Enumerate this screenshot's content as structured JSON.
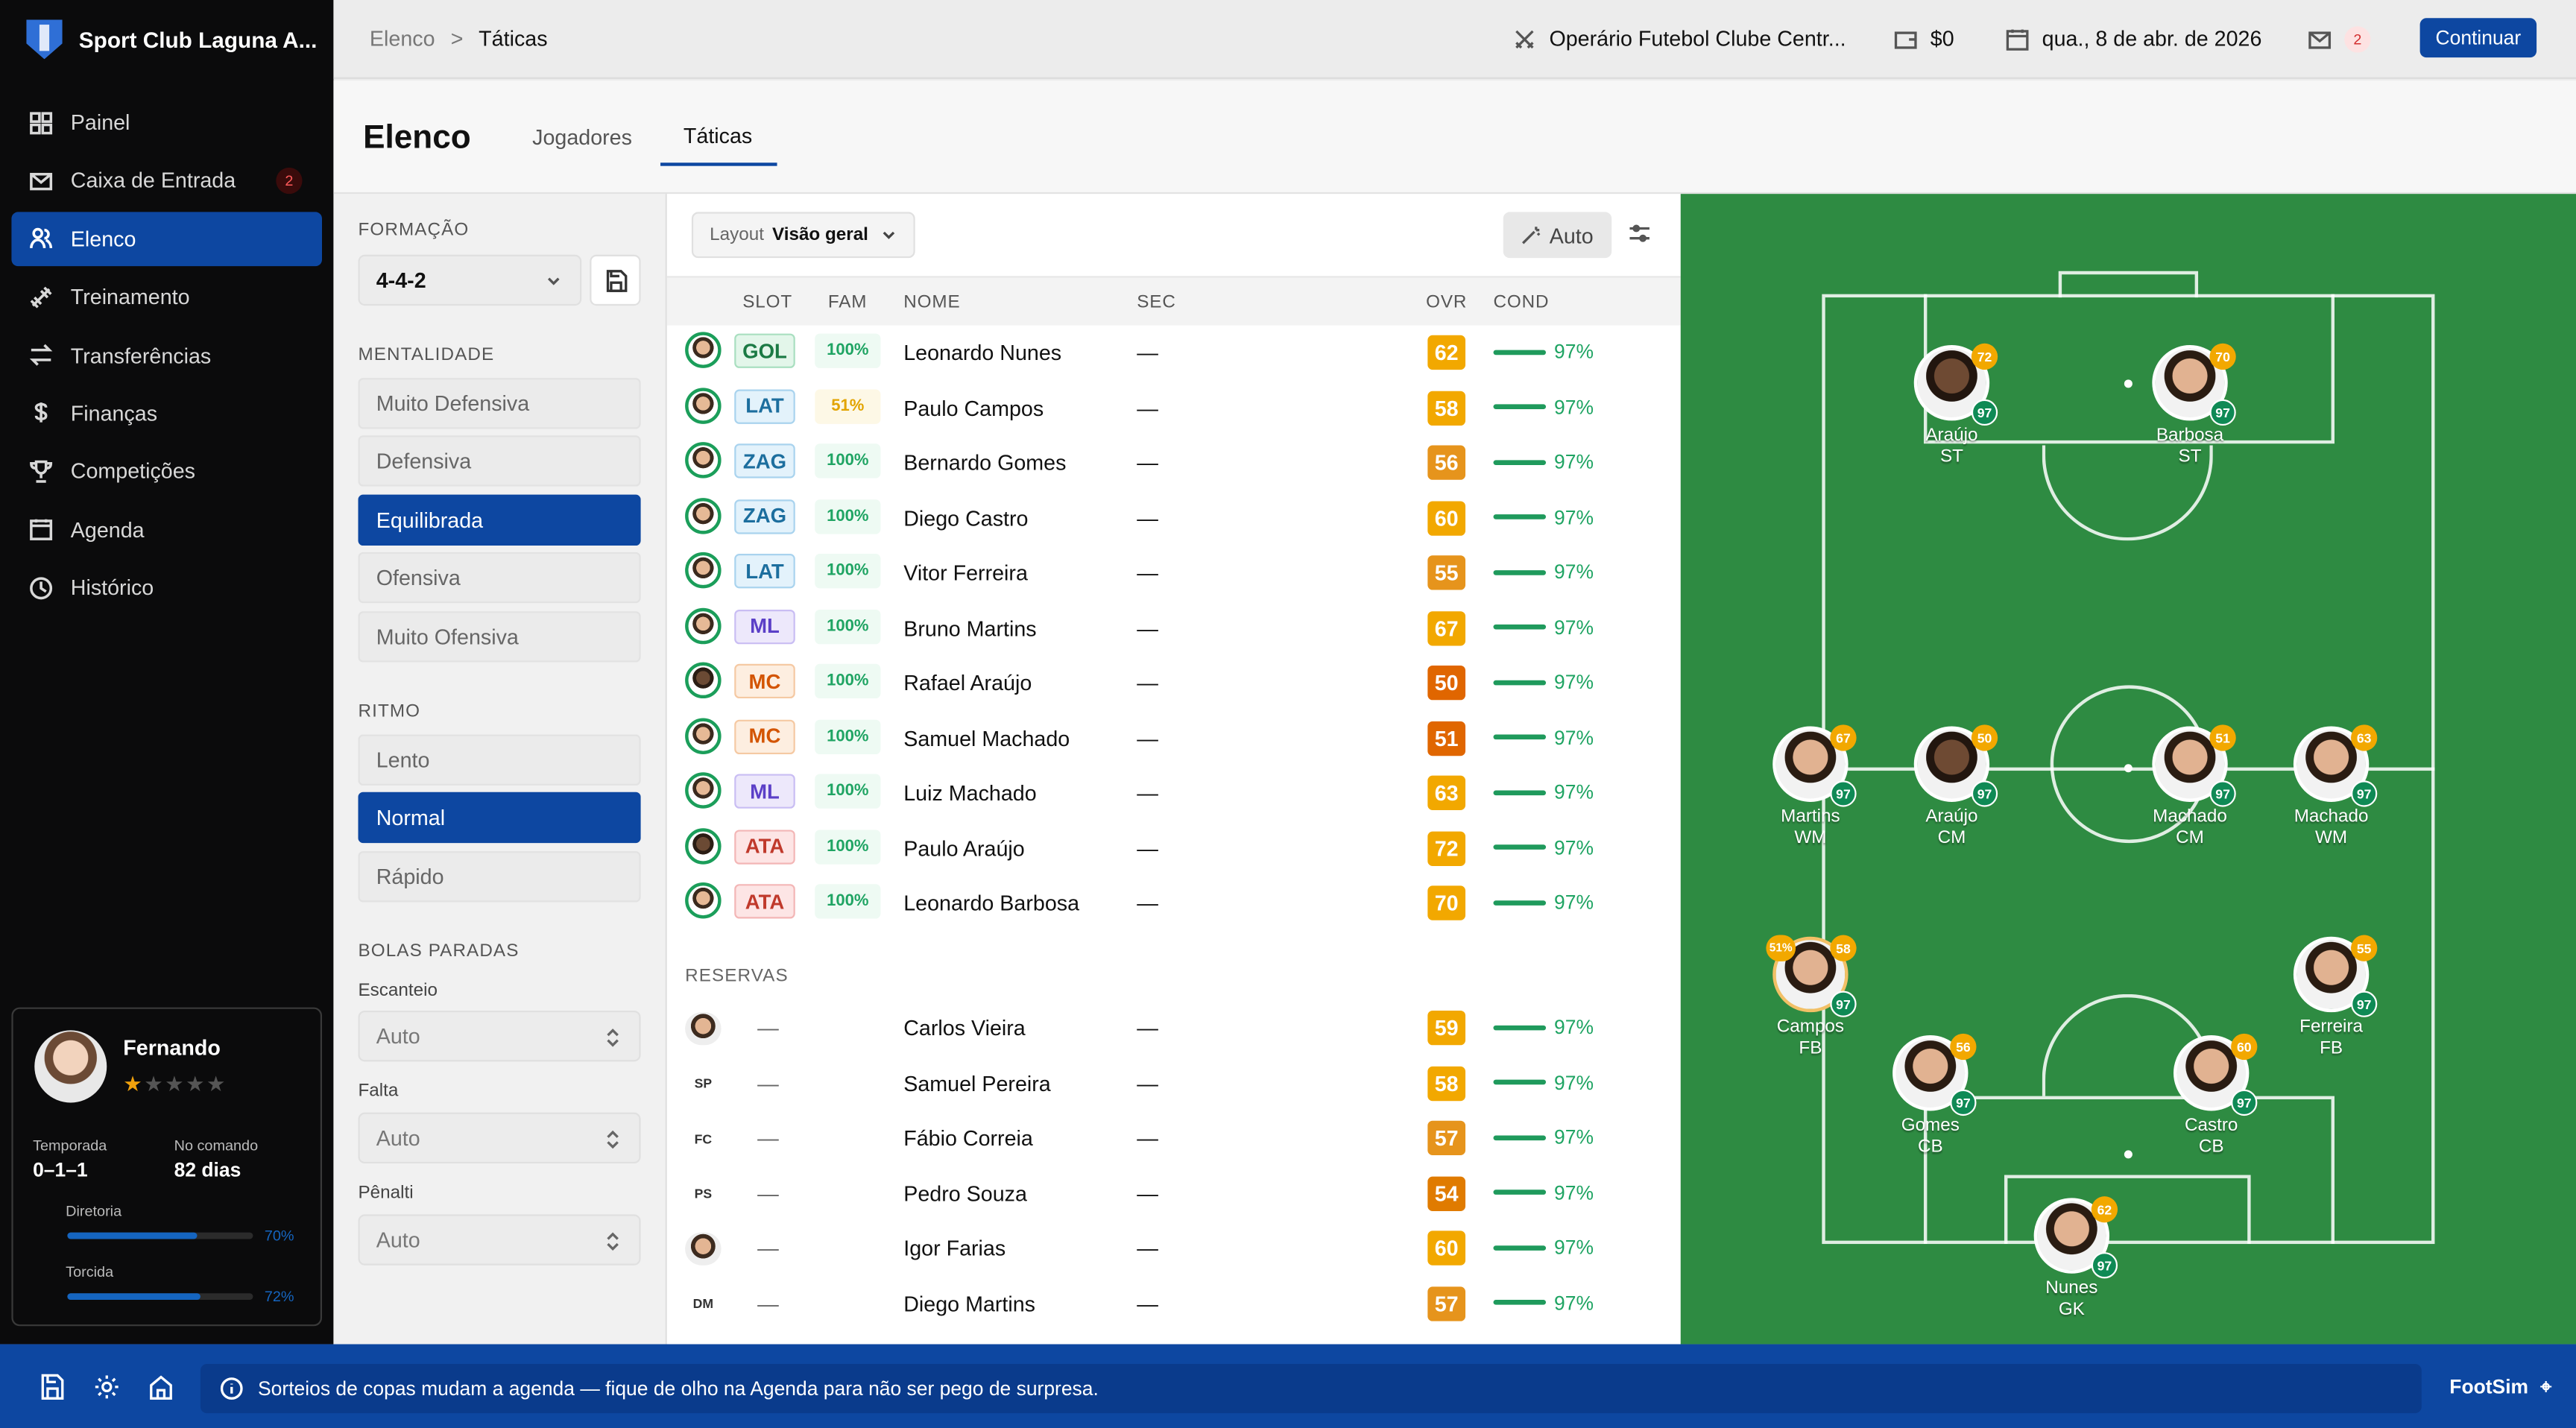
{
  "app": {
    "club_name": "Sport Club Laguna A..."
  },
  "sidebar": {
    "items": [
      {
        "label": "Painel",
        "icon": "dashboard-icon"
      },
      {
        "label": "Caixa de Entrada",
        "icon": "mail-icon",
        "badge": "2"
      },
      {
        "label": "Elenco",
        "icon": "users-icon",
        "active": true
      },
      {
        "label": "Treinamento",
        "icon": "dumbbell-icon"
      },
      {
        "label": "Transferências",
        "icon": "transfer-icon"
      },
      {
        "label": "Finanças",
        "icon": "dollar-icon"
      },
      {
        "label": "Competições",
        "icon": "trophy-icon"
      },
      {
        "label": "Agenda",
        "icon": "calendar-icon"
      },
      {
        "label": "Histórico",
        "icon": "clock-icon"
      }
    ]
  },
  "profile": {
    "name": "Fernando",
    "stars_filled": 1,
    "stars_total": 5,
    "season_label": "Temporada",
    "season_value": "0–1–1",
    "tenure_label": "No comando",
    "tenure_value": "82 dias",
    "board_label": "Diretoria",
    "board_pct": "70%",
    "board_value": 0.7,
    "fans_label": "Torcida",
    "fans_pct": "72%",
    "fans_value": 0.72
  },
  "topbar": {
    "breadcrumb_parent": "Elenco",
    "breadcrumb_sep": ">",
    "breadcrumb_current": "Táticas",
    "next_opponent": "Operário Futebol Clube Centr...",
    "balance": "$0",
    "date": "qua., 8 de abr. de 2026",
    "mail_count": "2",
    "continue_label": "Continuar"
  },
  "page": {
    "title": "Elenco",
    "tabs": [
      "Jogadores",
      "Táticas"
    ],
    "active_tab": "Táticas"
  },
  "tactics": {
    "formation_label": "FORMAÇÃO",
    "formation_value": "4-4-2",
    "mentality_label": "MENTALIDADE",
    "mentality_options": [
      "Muito Defensiva",
      "Defensiva",
      "Equilibrada",
      "Ofensiva",
      "Muito Ofensiva"
    ],
    "mentality_selected": "Equilibrada",
    "tempo_label": "RITMO",
    "tempo_options": [
      "Lento",
      "Normal",
      "Rápido"
    ],
    "tempo_selected": "Normal",
    "set_pieces_label": "BOLAS PARADAS",
    "corner_label": "Escanteio",
    "corner_value": "Auto",
    "freekick_label": "Falta",
    "freekick_value": "Auto",
    "penalty_label": "Pênalti",
    "penalty_value": "Auto"
  },
  "table": {
    "layout_label": "Layout",
    "layout_value": "Visão geral",
    "auto_label": "Auto",
    "headers": {
      "slot": "SLOT",
      "fam": "FAM",
      "name": "NOME",
      "sec": "SEC",
      "ovr": "OVR",
      "cond": "COND"
    },
    "starters": [
      {
        "slot": "GOL",
        "fam": "100%",
        "name": "Leonardo Nunes",
        "sec": "—",
        "ovr": "62",
        "cond": "97%"
      },
      {
        "slot": "LAT",
        "fam": "51%",
        "name": "Paulo Campos",
        "sec": "—",
        "ovr": "58",
        "cond": "97%"
      },
      {
        "slot": "ZAG",
        "fam": "100%",
        "name": "Bernardo Gomes",
        "sec": "—",
        "ovr": "56",
        "cond": "97%"
      },
      {
        "slot": "ZAG",
        "fam": "100%",
        "name": "Diego Castro",
        "sec": "—",
        "ovr": "60",
        "cond": "97%"
      },
      {
        "slot": "LAT",
        "fam": "100%",
        "name": "Vitor Ferreira",
        "sec": "—",
        "ovr": "55",
        "cond": "97%"
      },
      {
        "slot": "ML",
        "fam": "100%",
        "name": "Bruno Martins",
        "sec": "—",
        "ovr": "67",
        "cond": "97%"
      },
      {
        "slot": "MC",
        "fam": "100%",
        "name": "Rafael Araújo",
        "sec": "—",
        "ovr": "50",
        "cond": "97%"
      },
      {
        "slot": "MC",
        "fam": "100%",
        "name": "Samuel Machado",
        "sec": "—",
        "ovr": "51",
        "cond": "97%"
      },
      {
        "slot": "ML",
        "fam": "100%",
        "name": "Luiz Machado",
        "sec": "—",
        "ovr": "63",
        "cond": "97%"
      },
      {
        "slot": "ATA",
        "fam": "100%",
        "name": "Paulo Araújo",
        "sec": "—",
        "ovr": "72",
        "cond": "97%"
      },
      {
        "slot": "ATA",
        "fam": "100%",
        "name": "Leonardo Barbosa",
        "sec": "—",
        "ovr": "70",
        "cond": "97%"
      }
    ],
    "reserves_label": "RESERVAS",
    "reserves": [
      {
        "initials": "",
        "slot": "—",
        "name": "Carlos Vieira",
        "sec": "—",
        "ovr": "59",
        "cond": "97%"
      },
      {
        "initials": "SP",
        "slot": "—",
        "name": "Samuel Pereira",
        "sec": "—",
        "ovr": "58",
        "cond": "97%"
      },
      {
        "initials": "FC",
        "slot": "—",
        "name": "Fábio Correia",
        "sec": "—",
        "ovr": "57",
        "cond": "97%"
      },
      {
        "initials": "PS",
        "slot": "—",
        "name": "Pedro Souza",
        "sec": "—",
        "ovr": "54",
        "cond": "97%"
      },
      {
        "initials": "",
        "slot": "—",
        "name": "Igor Farias",
        "sec": "—",
        "ovr": "60",
        "cond": "97%"
      },
      {
        "initials": "DM",
        "slot": "—",
        "name": "Diego Martins",
        "sec": "—",
        "ovr": "57",
        "cond": "97%"
      }
    ]
  },
  "pitch": {
    "players": [
      {
        "name": "Araújo",
        "pos": "ST",
        "ovr": "72",
        "cond": "97"
      },
      {
        "name": "Barbosa",
        "pos": "ST",
        "ovr": "70",
        "cond": "97"
      },
      {
        "name": "Martins",
        "pos": "WM",
        "ovr": "67",
        "cond": "97"
      },
      {
        "name": "Araújo",
        "pos": "CM",
        "ovr": "50",
        "cond": "97"
      },
      {
        "name": "Machado",
        "pos": "CM",
        "ovr": "51",
        "cond": "97"
      },
      {
        "name": "Machado",
        "pos": "WM",
        "ovr": "63",
        "cond": "97"
      },
      {
        "name": "Campos",
        "pos": "FB",
        "ovr": "58",
        "cond": "97",
        "fam": "51%"
      },
      {
        "name": "Ferreira",
        "pos": "FB",
        "ovr": "55",
        "cond": "97"
      },
      {
        "name": "Gomes",
        "pos": "CB",
        "ovr": "56",
        "cond": "97"
      },
      {
        "name": "Castro",
        "pos": "CB",
        "ovr": "60",
        "cond": "97"
      },
      {
        "name": "Nunes",
        "pos": "GK",
        "ovr": "62",
        "cond": "97"
      }
    ]
  },
  "footer": {
    "tip": "Sorteios de copas mudam a agenda — fique de olho na Agenda para não ser pego de surpresa.",
    "brand": "FootSim"
  }
}
